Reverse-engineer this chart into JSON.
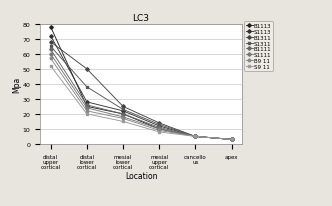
{
  "title": "LC3",
  "xlabel": "Location",
  "ylabel": "Mpa",
  "x_labels": [
    "distal\nupper\ncortical",
    "distal\nlower\ncortical",
    "mesial\nlower\ncortical",
    "mesial\nupper\ncortical",
    "cancello\nus",
    "apex"
  ],
  "series": {
    "B1113": [
      78,
      25,
      20,
      10,
      5,
      3
    ],
    "S1113": [
      72,
      28,
      22,
      12,
      5,
      3
    ],
    "B1311": [
      68,
      50,
      25,
      14,
      5,
      3
    ],
    "S1311": [
      65,
      38,
      23,
      13,
      5,
      3
    ],
    "B1111": [
      63,
      26,
      20,
      11,
      5,
      3
    ],
    "S1111": [
      60,
      24,
      18,
      10,
      5,
      3
    ],
    "B9 11": [
      57,
      22,
      17,
      9,
      5,
      3
    ],
    "S9 11": [
      52,
      20,
      15,
      8,
      5,
      3
    ]
  },
  "ylim": [
    0,
    80
  ],
  "yticks": [
    0,
    10,
    20,
    30,
    40,
    50,
    60,
    70,
    80
  ],
  "legend_labels": [
    "B1113",
    "S1113",
    "B1311",
    "S1311",
    "B1111",
    "S1111",
    "B9 11",
    "S9 11"
  ],
  "line_colors": [
    "#222222",
    "#333333",
    "#444444",
    "#555555",
    "#666666",
    "#777777",
    "#888888",
    "#999999"
  ],
  "line_markers": [
    "D",
    "D",
    "D",
    "s",
    "D",
    "D",
    "o",
    "s"
  ],
  "bg_color": "#e8e4de"
}
